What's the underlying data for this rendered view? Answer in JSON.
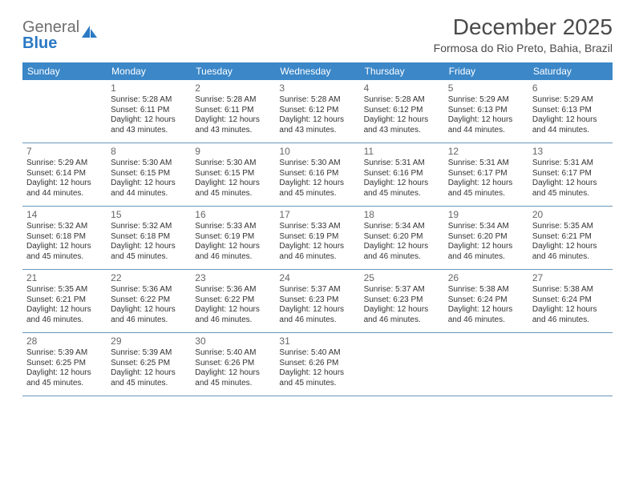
{
  "logo": {
    "text1": "General",
    "text2": "Blue"
  },
  "title": "December 2025",
  "location": "Formosa do Rio Preto, Bahia, Brazil",
  "colors": {
    "header_bg": "#3b87c8",
    "header_text": "#ffffff",
    "row_border": "#6a96bc",
    "body_text": "#333333",
    "daynum_text": "#666666",
    "logo_gray": "#6e6e6e",
    "logo_blue": "#2a79c4",
    "background": "#ffffff"
  },
  "day_names": [
    "Sunday",
    "Monday",
    "Tuesday",
    "Wednesday",
    "Thursday",
    "Friday",
    "Saturday"
  ],
  "layout": {
    "columns": 7,
    "rows": 5,
    "header_fontsize": 12,
    "cell_fontsize": 10,
    "daynum_fontsize": 12,
    "title_fontsize": 28,
    "location_fontsize": 14
  },
  "weeks": [
    [
      null,
      {
        "n": "1",
        "sr": "Sunrise: 5:28 AM",
        "ss": "Sunset: 6:11 PM",
        "d1": "Daylight: 12 hours",
        "d2": "and 43 minutes."
      },
      {
        "n": "2",
        "sr": "Sunrise: 5:28 AM",
        "ss": "Sunset: 6:11 PM",
        "d1": "Daylight: 12 hours",
        "d2": "and 43 minutes."
      },
      {
        "n": "3",
        "sr": "Sunrise: 5:28 AM",
        "ss": "Sunset: 6:12 PM",
        "d1": "Daylight: 12 hours",
        "d2": "and 43 minutes."
      },
      {
        "n": "4",
        "sr": "Sunrise: 5:28 AM",
        "ss": "Sunset: 6:12 PM",
        "d1": "Daylight: 12 hours",
        "d2": "and 43 minutes."
      },
      {
        "n": "5",
        "sr": "Sunrise: 5:29 AM",
        "ss": "Sunset: 6:13 PM",
        "d1": "Daylight: 12 hours",
        "d2": "and 44 minutes."
      },
      {
        "n": "6",
        "sr": "Sunrise: 5:29 AM",
        "ss": "Sunset: 6:13 PM",
        "d1": "Daylight: 12 hours",
        "d2": "and 44 minutes."
      }
    ],
    [
      {
        "n": "7",
        "sr": "Sunrise: 5:29 AM",
        "ss": "Sunset: 6:14 PM",
        "d1": "Daylight: 12 hours",
        "d2": "and 44 minutes."
      },
      {
        "n": "8",
        "sr": "Sunrise: 5:30 AM",
        "ss": "Sunset: 6:15 PM",
        "d1": "Daylight: 12 hours",
        "d2": "and 44 minutes."
      },
      {
        "n": "9",
        "sr": "Sunrise: 5:30 AM",
        "ss": "Sunset: 6:15 PM",
        "d1": "Daylight: 12 hours",
        "d2": "and 45 minutes."
      },
      {
        "n": "10",
        "sr": "Sunrise: 5:30 AM",
        "ss": "Sunset: 6:16 PM",
        "d1": "Daylight: 12 hours",
        "d2": "and 45 minutes."
      },
      {
        "n": "11",
        "sr": "Sunrise: 5:31 AM",
        "ss": "Sunset: 6:16 PM",
        "d1": "Daylight: 12 hours",
        "d2": "and 45 minutes."
      },
      {
        "n": "12",
        "sr": "Sunrise: 5:31 AM",
        "ss": "Sunset: 6:17 PM",
        "d1": "Daylight: 12 hours",
        "d2": "and 45 minutes."
      },
      {
        "n": "13",
        "sr": "Sunrise: 5:31 AM",
        "ss": "Sunset: 6:17 PM",
        "d1": "Daylight: 12 hours",
        "d2": "and 45 minutes."
      }
    ],
    [
      {
        "n": "14",
        "sr": "Sunrise: 5:32 AM",
        "ss": "Sunset: 6:18 PM",
        "d1": "Daylight: 12 hours",
        "d2": "and 45 minutes."
      },
      {
        "n": "15",
        "sr": "Sunrise: 5:32 AM",
        "ss": "Sunset: 6:18 PM",
        "d1": "Daylight: 12 hours",
        "d2": "and 45 minutes."
      },
      {
        "n": "16",
        "sr": "Sunrise: 5:33 AM",
        "ss": "Sunset: 6:19 PM",
        "d1": "Daylight: 12 hours",
        "d2": "and 46 minutes."
      },
      {
        "n": "17",
        "sr": "Sunrise: 5:33 AM",
        "ss": "Sunset: 6:19 PM",
        "d1": "Daylight: 12 hours",
        "d2": "and 46 minutes."
      },
      {
        "n": "18",
        "sr": "Sunrise: 5:34 AM",
        "ss": "Sunset: 6:20 PM",
        "d1": "Daylight: 12 hours",
        "d2": "and 46 minutes."
      },
      {
        "n": "19",
        "sr": "Sunrise: 5:34 AM",
        "ss": "Sunset: 6:20 PM",
        "d1": "Daylight: 12 hours",
        "d2": "and 46 minutes."
      },
      {
        "n": "20",
        "sr": "Sunrise: 5:35 AM",
        "ss": "Sunset: 6:21 PM",
        "d1": "Daylight: 12 hours",
        "d2": "and 46 minutes."
      }
    ],
    [
      {
        "n": "21",
        "sr": "Sunrise: 5:35 AM",
        "ss": "Sunset: 6:21 PM",
        "d1": "Daylight: 12 hours",
        "d2": "and 46 minutes."
      },
      {
        "n": "22",
        "sr": "Sunrise: 5:36 AM",
        "ss": "Sunset: 6:22 PM",
        "d1": "Daylight: 12 hours",
        "d2": "and 46 minutes."
      },
      {
        "n": "23",
        "sr": "Sunrise: 5:36 AM",
        "ss": "Sunset: 6:22 PM",
        "d1": "Daylight: 12 hours",
        "d2": "and 46 minutes."
      },
      {
        "n": "24",
        "sr": "Sunrise: 5:37 AM",
        "ss": "Sunset: 6:23 PM",
        "d1": "Daylight: 12 hours",
        "d2": "and 46 minutes."
      },
      {
        "n": "25",
        "sr": "Sunrise: 5:37 AM",
        "ss": "Sunset: 6:23 PM",
        "d1": "Daylight: 12 hours",
        "d2": "and 46 minutes."
      },
      {
        "n": "26",
        "sr": "Sunrise: 5:38 AM",
        "ss": "Sunset: 6:24 PM",
        "d1": "Daylight: 12 hours",
        "d2": "and 46 minutes."
      },
      {
        "n": "27",
        "sr": "Sunrise: 5:38 AM",
        "ss": "Sunset: 6:24 PM",
        "d1": "Daylight: 12 hours",
        "d2": "and 46 minutes."
      }
    ],
    [
      {
        "n": "28",
        "sr": "Sunrise: 5:39 AM",
        "ss": "Sunset: 6:25 PM",
        "d1": "Daylight: 12 hours",
        "d2": "and 45 minutes."
      },
      {
        "n": "29",
        "sr": "Sunrise: 5:39 AM",
        "ss": "Sunset: 6:25 PM",
        "d1": "Daylight: 12 hours",
        "d2": "and 45 minutes."
      },
      {
        "n": "30",
        "sr": "Sunrise: 5:40 AM",
        "ss": "Sunset: 6:26 PM",
        "d1": "Daylight: 12 hours",
        "d2": "and 45 minutes."
      },
      {
        "n": "31",
        "sr": "Sunrise: 5:40 AM",
        "ss": "Sunset: 6:26 PM",
        "d1": "Daylight: 12 hours",
        "d2": "and 45 minutes."
      },
      null,
      null,
      null
    ]
  ]
}
